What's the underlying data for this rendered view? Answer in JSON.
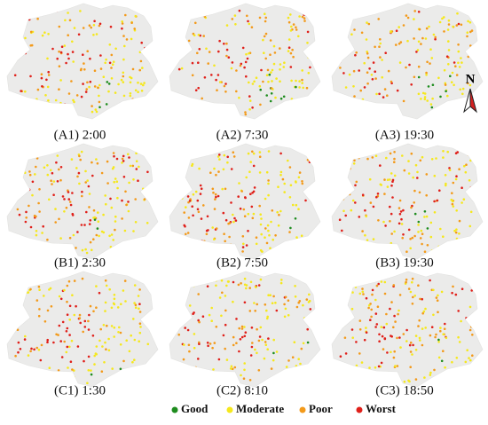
{
  "panels": [
    {
      "label": "(A1) 2:00"
    },
    {
      "label": "(A2) 7:30"
    },
    {
      "label": "(A3) 19:30"
    },
    {
      "label": "(B1) 2:30"
    },
    {
      "label": "(B2) 7:50"
    },
    {
      "label": "(B3) 19:30"
    },
    {
      "label": "(C1) 1:30"
    },
    {
      "label": "(C2) 8:10"
    },
    {
      "label": "(C3) 18:50"
    }
  ],
  "legend": [
    {
      "label": "Good",
      "color": "#1e8c1e"
    },
    {
      "label": "Moderate",
      "color": "#f5e81c"
    },
    {
      "label": "Poor",
      "color": "#f39a1a"
    },
    {
      "label": "Worst",
      "color": "#e0201a"
    }
  ],
  "north": "N"
}
